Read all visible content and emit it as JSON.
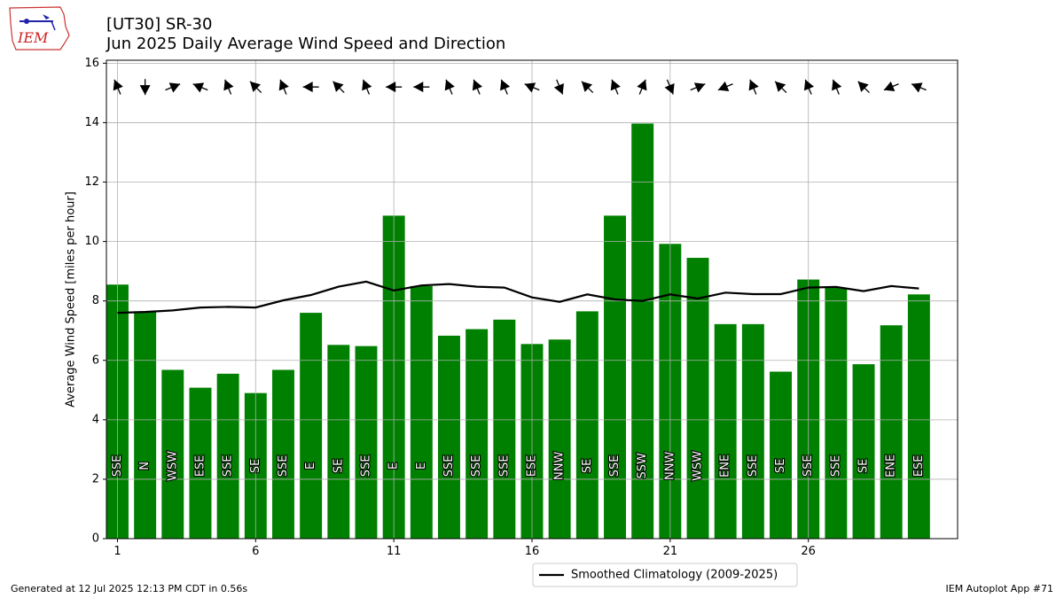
{
  "header": {
    "title": "[UT30] SR-30",
    "subtitle": "Jun 2025 Daily Average Wind Speed and Direction",
    "logo_text": "IEM"
  },
  "footer": {
    "left": "Generated at 12 Jul 2025 12:13 PM CDT in 0.56s",
    "right": "IEM Autoplot App #71"
  },
  "chart_data": {
    "type": "bar",
    "ylabel": "Average Wind Speed [miles per hour]",
    "ylim": [
      0,
      16.1
    ],
    "yticks": [
      0,
      2,
      4,
      6,
      8,
      10,
      12,
      14,
      16
    ],
    "xlim": [
      0.6,
      31.4
    ],
    "xticks": [
      1,
      6,
      11,
      16,
      21,
      26
    ],
    "grid": true,
    "bar_color": "#008000",
    "days": [
      1,
      2,
      3,
      4,
      5,
      6,
      7,
      8,
      9,
      10,
      11,
      12,
      13,
      14,
      15,
      16,
      17,
      18,
      19,
      20,
      21,
      22,
      23,
      24,
      25,
      26,
      27,
      28,
      29,
      30
    ],
    "values": [
      8.55,
      7.65,
      5.68,
      5.08,
      5.55,
      4.9,
      5.68,
      7.6,
      6.52,
      6.48,
      10.87,
      8.5,
      6.83,
      7.05,
      7.37,
      6.55,
      6.7,
      7.65,
      10.87,
      13.97,
      9.92,
      9.45,
      7.22,
      7.22,
      5.62,
      8.72,
      8.45,
      5.87,
      7.18,
      8.22
    ],
    "directions": [
      "SSE",
      "N",
      "WSW",
      "ESE",
      "SSE",
      "SE",
      "SSE",
      "E",
      "SE",
      "SSE",
      "E",
      "E",
      "SSE",
      "SSE",
      "SSE",
      "ESE",
      "NNW",
      "SE",
      "SSE",
      "SSW",
      "NNW",
      "WSW",
      "ENE",
      "SSE",
      "SE",
      "SSE",
      "SSE",
      "SE",
      "ENE",
      "ESE"
    ],
    "wind_from_deg": [
      157.5,
      0,
      247.5,
      112.5,
      157.5,
      135,
      157.5,
      90,
      135,
      157.5,
      90,
      90,
      157.5,
      157.5,
      157.5,
      112.5,
      337.5,
      135,
      157.5,
      202.5,
      337.5,
      247.5,
      67.5,
      157.5,
      135,
      157.5,
      157.5,
      135,
      67.5,
      112.5
    ],
    "climatology": {
      "name": "Smoothed Climatology (2009-2025)",
      "color": "#000000",
      "values": [
        7.6,
        7.63,
        7.68,
        7.78,
        7.8,
        7.78,
        8.02,
        8.2,
        8.48,
        8.65,
        8.35,
        8.52,
        8.57,
        8.48,
        8.45,
        8.12,
        7.97,
        8.22,
        8.05,
        8.0,
        8.22,
        8.08,
        8.28,
        8.23,
        8.23,
        8.45,
        8.47,
        8.33,
        8.5,
        8.42
      ]
    }
  }
}
